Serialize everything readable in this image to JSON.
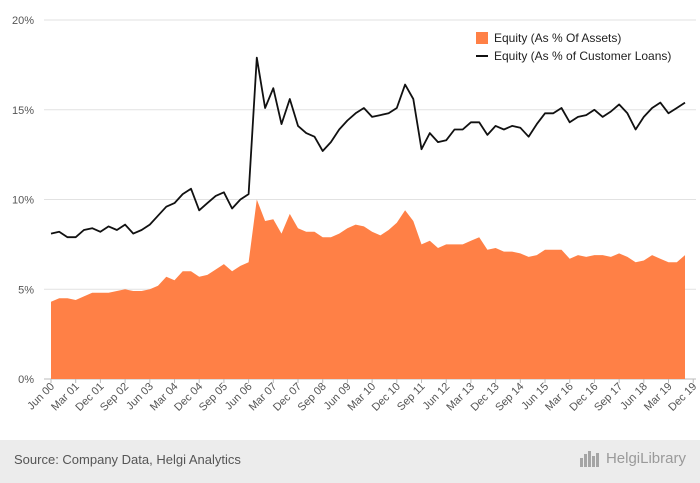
{
  "chart_data": {
    "type": "area",
    "title": "",
    "xlabel": "",
    "ylabel": "",
    "ylim": [
      0,
      20
    ],
    "y_ticks": [
      "0%",
      "5%",
      "10%",
      "15%",
      "20%"
    ],
    "x_tick_labels": [
      "Jun 00",
      "Mar 01",
      "Dec 01",
      "Sep 02",
      "Jun 03",
      "Mar 04",
      "Dec 04",
      "Sep 05",
      "Jun 06",
      "Mar 07",
      "Dec 07",
      "Sep 08",
      "Jun 09",
      "Mar 10",
      "Dec 10",
      "Sep 11",
      "Jun 12",
      "Mar 13",
      "Dec 13",
      "Sep 14",
      "Jun 15",
      "Mar 16",
      "Dec 16",
      "Sep 17",
      "Jun 18",
      "Mar 19",
      "Dec 19"
    ],
    "x_start": "Jun 00",
    "x_frequency": "quarterly",
    "grid": true,
    "legend_position": "top-right",
    "series": [
      {
        "name": "Equity (As % Of Assets)",
        "style": "area",
        "color": "#ff8046",
        "values": [
          4.3,
          4.5,
          4.5,
          4.4,
          4.6,
          4.8,
          4.8,
          4.8,
          4.9,
          5.0,
          4.9,
          4.9,
          5.0,
          5.2,
          5.7,
          5.5,
          6.0,
          6.0,
          5.7,
          5.8,
          6.1,
          6.4,
          6.0,
          6.3,
          6.5,
          10.0,
          8.8,
          8.9,
          8.1,
          9.2,
          8.4,
          8.2,
          8.2,
          7.9,
          7.9,
          8.1,
          8.4,
          8.6,
          8.5,
          8.2,
          8.0,
          8.3,
          8.7,
          9.4,
          8.8,
          7.5,
          7.7,
          7.3,
          7.5,
          7.5,
          7.5,
          7.7,
          7.9,
          7.2,
          7.3,
          7.1,
          7.1,
          7.0,
          6.8,
          6.9,
          7.2,
          7.2,
          7.2,
          6.7,
          6.9,
          6.8,
          6.9,
          6.9,
          6.8,
          7.0,
          6.8,
          6.5,
          6.6,
          6.9,
          6.7,
          6.5,
          6.5,
          6.9
        ]
      },
      {
        "name": "Equity (As % of Customer Loans)",
        "style": "line",
        "color": "#111111",
        "values": [
          8.1,
          8.2,
          7.9,
          7.9,
          8.3,
          8.4,
          8.2,
          8.5,
          8.3,
          8.6,
          8.1,
          8.3,
          8.6,
          9.1,
          9.6,
          9.8,
          10.3,
          10.6,
          9.4,
          9.8,
          10.2,
          10.4,
          9.5,
          10.0,
          10.3,
          17.9,
          15.1,
          16.2,
          14.2,
          15.6,
          14.1,
          13.7,
          13.5,
          12.7,
          13.2,
          13.9,
          14.4,
          14.8,
          15.1,
          14.6,
          14.7,
          14.8,
          15.1,
          16.4,
          15.6,
          12.8,
          13.7,
          13.2,
          13.3,
          13.9,
          13.9,
          14.3,
          14.3,
          13.6,
          14.1,
          13.9,
          14.1,
          14.0,
          13.5,
          14.2,
          14.8,
          14.8,
          15.1,
          14.3,
          14.6,
          14.7,
          15.0,
          14.6,
          14.9,
          15.3,
          14.8,
          13.9,
          14.6,
          15.1,
          15.4,
          14.8,
          15.1,
          15.4
        ]
      }
    ]
  },
  "footer": {
    "source": "Source: Company Data, Helgi Analytics",
    "brand": "HelgiLibrary"
  }
}
